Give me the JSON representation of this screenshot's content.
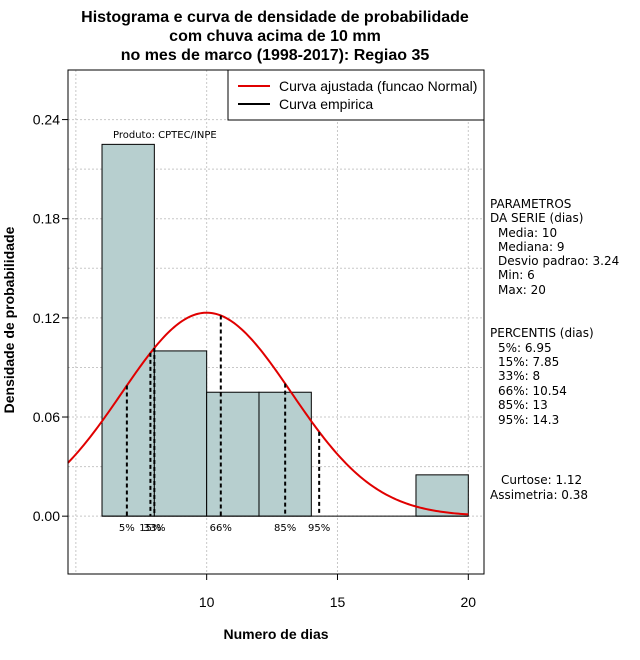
{
  "chart_data": {
    "type": "histogram",
    "title_lines": [
      "Histograma e curva de densidade de probabilidade",
      "com chuva acima de 10 mm",
      "no mes de marco (1998-2017): Regiao 35"
    ],
    "xlabel": "Numero de dias",
    "ylabel": "Densidade de probabilidade",
    "xlim": [
      4.7,
      20.6
    ],
    "ylim": [
      -0.035,
      0.27
    ],
    "x_ticks": [
      10,
      15,
      20
    ],
    "y_ticks": [
      0.0,
      0.06,
      0.12,
      0.18,
      0.24
    ],
    "y_tick_labels": [
      "0.00",
      "0.06",
      "0.12",
      "0.18",
      "0.24"
    ],
    "grid": true,
    "bins": [
      {
        "from": 6,
        "to": 8,
        "density": 0.225
      },
      {
        "from": 8,
        "to": 10,
        "density": 0.1
      },
      {
        "from": 10,
        "to": 12,
        "density": 0.075
      },
      {
        "from": 12,
        "to": 14,
        "density": 0.075
      },
      {
        "from": 14,
        "to": 16,
        "density": 0
      },
      {
        "from": 16,
        "to": 18,
        "density": 0
      },
      {
        "from": 18,
        "to": 20,
        "density": 0.025
      }
    ],
    "bar_color": "#b7cfcf",
    "normal_fit": {
      "mean": 10,
      "sd": 3.24,
      "color": "#e00000"
    },
    "percentile_lines": [
      {
        "label": "5%",
        "x": 6.95
      },
      {
        "label": "15%",
        "x": 7.85
      },
      {
        "label": "33%",
        "x": 8
      },
      {
        "label": "66%",
        "x": 10.54
      },
      {
        "label": "85%",
        "x": 13
      },
      {
        "label": "95%",
        "x": 14.3
      }
    ],
    "legend": {
      "placement": "top-right",
      "entries": [
        {
          "label": "Curva ajustada (funcao Normal)",
          "color": "#e00000"
        },
        {
          "label": "Curva empirica",
          "color": "#000000"
        }
      ]
    },
    "annotation": "Produto: CPTEC/INPE"
  },
  "side_panel": {
    "params_title_1": "PARAMETROS",
    "params_title_2": "DA SERIE (dias)",
    "params": [
      "Media: 10",
      "Mediana: 9",
      "Desvio padrao: 3.24",
      "Min: 6",
      "Max: 20"
    ],
    "percentis_title": "PERCENTIS (dias)",
    "percentis": [
      "5%: 6.95",
      "15%: 7.85",
      "33%: 8",
      "66%: 10.54",
      "85%: 13",
      "95%: 14.3"
    ],
    "curtose": "Curtose: 1.12",
    "assimetria": "Assimetria: 0.38"
  }
}
